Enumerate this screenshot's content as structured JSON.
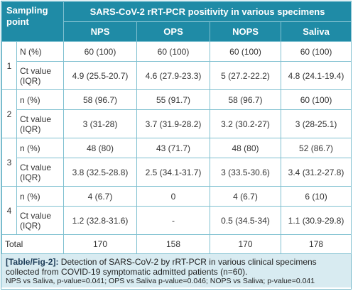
{
  "table": {
    "corner_label": "Sampling point",
    "group_header": "SARS-CoV-2 rRT-PCR positivity in various specimens",
    "columns": [
      "NPS",
      "OPS",
      "NOPS",
      "Saliva"
    ],
    "sampling_points": [
      {
        "point": "1",
        "rows": [
          {
            "label": "N (%)",
            "values": [
              "60 (100)",
              "60 (100)",
              "60 (100)",
              "60 (100)"
            ]
          },
          {
            "label": "Ct value (IQR)",
            "values": [
              "4.9 (25.5-20.7)",
              "4.6 (27.9-23.3)",
              "5 (27.2-22.2)",
              "4.8 (24.1-19.4)"
            ]
          }
        ]
      },
      {
        "point": "2",
        "rows": [
          {
            "label": "n (%)",
            "values": [
              "58 (96.7)",
              "55 (91.7)",
              "58 (96.7)",
              "60 (100)"
            ]
          },
          {
            "label": "Ct value (IQR)",
            "values": [
              "3 (31-28)",
              "3.7 (31.9-28.2)",
              "3.2 (30.2-27)",
              "3 (28-25.1)"
            ]
          }
        ]
      },
      {
        "point": "3",
        "rows": [
          {
            "label": "n (%)",
            "values": [
              "48 (80)",
              "43 (71.7)",
              "48 (80)",
              "52 (86.7)"
            ]
          },
          {
            "label": "Ct value (IQR)",
            "values": [
              "3.8 (32.5-28.8)",
              "2.5 (34.1-31.7)",
              "3 (33.5-30.6)",
              "3.4 (31.2-27.8)"
            ]
          }
        ]
      },
      {
        "point": "4",
        "rows": [
          {
            "label": "n (%)",
            "values": [
              "4 (6.7)",
              "0",
              "4 (6.7)",
              "6 (10)"
            ]
          },
          {
            "label": "Ct value (IQR)",
            "values": [
              "1.2 (32.8-31.6)",
              "-",
              "0.5 (34.5-34)",
              "1.1 (30.9-29.8)"
            ]
          }
        ]
      }
    ],
    "total": {
      "label": "Total",
      "values": [
        "170",
        "158",
        "170",
        "178"
      ]
    }
  },
  "caption": {
    "tag": "[Table/Fig-2]:",
    "text": " Detection of SARS-CoV-2 by rRT-PCR in various clinical specimens collected from COVID-19 symptomatic admitted patients (n=60).",
    "note": "NPS vs Saliva, p-value=0.041; OPS vs Saliva p-value=0.046; NOPS vs Saliva; p-value=0.041"
  },
  "colors": {
    "header_bg": "#1f8ba6",
    "caption_bg": "#d8ebf1",
    "border": "#7fc0d0"
  }
}
